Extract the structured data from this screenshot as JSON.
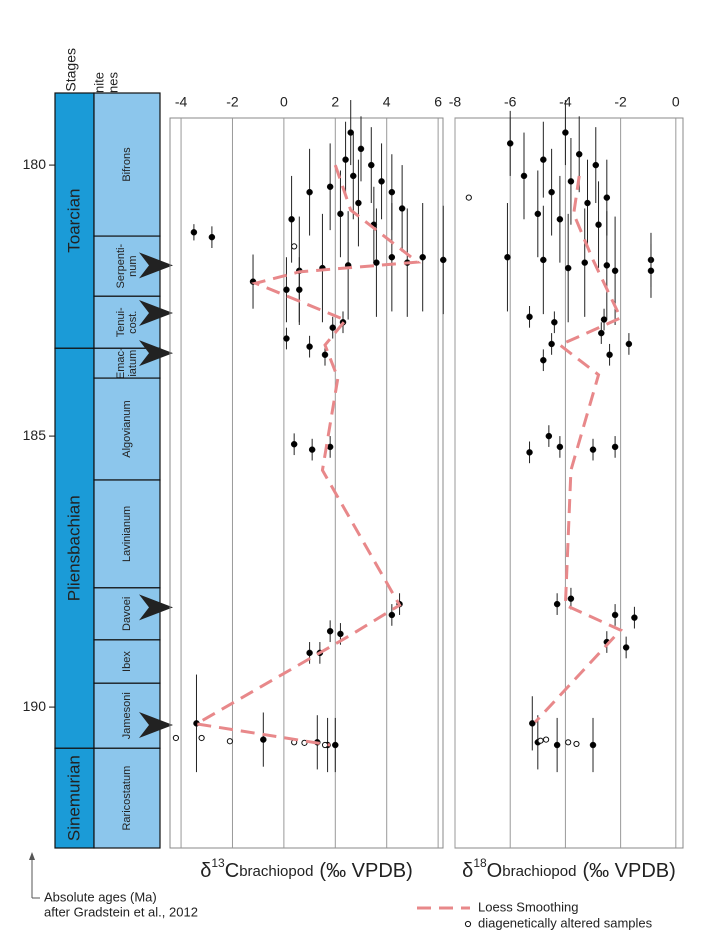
{
  "column": {
    "headers": {
      "stages": "Stages",
      "zones": [
        "Ammonite",
        "Zones"
      ]
    },
    "stages": [
      {
        "name": "Toarcian",
        "top": 178.67,
        "base": 183.38
      },
      {
        "name": "Pliensbachian",
        "top": 183.38,
        "base": 190.76
      },
      {
        "name": "Sinemurian",
        "top": 190.76,
        "base": 192.6
      }
    ],
    "zones": [
      {
        "name": [
          "Bifrons"
        ],
        "top": 178.67,
        "base": 181.31
      },
      {
        "name": [
          "Serpenti-",
          "num"
        ],
        "top": 181.31,
        "base": 182.42
      },
      {
        "name": [
          "Tenui-",
          "cost."
        ],
        "top": 182.42,
        "base": 183.38
      },
      {
        "name": [
          "Emac-",
          "iatum"
        ],
        "top": 183.38,
        "base": 183.93
      },
      {
        "name": [
          "Algovianum"
        ],
        "top": 183.93,
        "base": 185.81
      },
      {
        "name": [
          "Lavinianum"
        ],
        "top": 185.81,
        "base": 187.8
      },
      {
        "name": [
          "Davoei"
        ],
        "top": 187.8,
        "base": 188.76
      },
      {
        "name": [
          "Ibex"
        ],
        "top": 188.76,
        "base": 189.56
      },
      {
        "name": [
          "Jamesoni"
        ],
        "top": 189.56,
        "base": 190.76
      },
      {
        "name": [
          "Raricostatum"
        ],
        "top": 190.76,
        "base": 192.6
      }
    ],
    "arrows": [
      181.85,
      182.73,
      183.47,
      188.16,
      190.33
    ]
  },
  "note": [
    "Absolute ages (Ma)",
    "after Gradstein et al., 2012"
  ],
  "chart_data": [
    {
      "type": "scatter",
      "xlabel": {
        "symbol": "δ",
        "isotope": "13",
        "element": "C",
        "subscript": "brachiopod",
        "unit": "(‰ VPDB)"
      },
      "xlim": [
        -4.43,
        6.19
      ],
      "xticks": [
        -4,
        -2,
        0,
        2,
        4,
        6
      ],
      "ylim": [
        178.67,
        192.6
      ],
      "yticks": [
        180,
        185,
        190
      ],
      "y_inverted": true,
      "grid": true,
      "series": [
        {
          "color": "#000000",
          "marker": "filled",
          "x": [
            2.6,
            3.0,
            2.4,
            3.4,
            2.7,
            3.8,
            1.8,
            1.0,
            4.2,
            2.9,
            4.6,
            2.2,
            0.3,
            3.5,
            -3.5,
            -2.8,
            5.4,
            6.2,
            4.8,
            3.6,
            2.5,
            1.5,
            0.6,
            4.2,
            -1.2,
            0.1,
            0.6,
            2.3,
            1.9,
            0.1,
            1.0,
            1.6,
            0.4,
            1.1,
            1.8,
            4.5,
            4.2,
            1.8,
            2.2,
            1.0,
            1.4,
            -3.4,
            -0.8,
            1.3,
            1.7,
            2.0
          ],
          "y": [
            179.4,
            179.7,
            179.9,
            180.0,
            180.2,
            180.3,
            180.4,
            180.5,
            180.5,
            180.7,
            180.8,
            180.9,
            181.0,
            181.1,
            181.24,
            181.33,
            181.7,
            181.75,
            181.8,
            181.8,
            181.85,
            181.9,
            181.95,
            181.7,
            182.15,
            182.3,
            182.3,
            182.9,
            183.0,
            183.2,
            183.35,
            183.5,
            185.15,
            185.25,
            185.2,
            188.1,
            188.3,
            188.6,
            188.65,
            189.0,
            189.0,
            190.3,
            190.6,
            190.65,
            190.7,
            190.7
          ],
          "yerr": [
            0.6,
            0.6,
            0.7,
            0.7,
            0.8,
            0.7,
            0.8,
            0.8,
            0.7,
            0.8,
            0.8,
            0.8,
            0.8,
            0.7,
            0.15,
            0.2,
            1.0,
            1.0,
            1.0,
            1.0,
            1.0,
            1.0,
            1.0,
            1.0,
            0.5,
            0.6,
            0.6,
            0.2,
            0.2,
            0.2,
            0.2,
            0.2,
            0.2,
            0.2,
            0.2,
            0.2,
            0.2,
            0.2,
            0.2,
            0.2,
            0.2,
            0.9,
            0.5,
            0.5,
            0.5,
            0.5
          ]
        },
        {
          "name": "diagenetically altered samples",
          "color": "#ffffff",
          "marker": "open",
          "x": [
            0.4,
            -4.2,
            -3.2,
            -2.1,
            0.4,
            0.8,
            1.6
          ],
          "y": [
            181.5,
            190.57,
            190.57,
            190.63,
            190.65,
            190.66,
            190.7
          ]
        },
        {
          "name": "Loess Smoothing",
          "color": "#e8888a",
          "marker": "line",
          "x": [
            2.0,
            2.6,
            5.2,
            0.6,
            -1.1,
            2.4,
            1.6,
            2.1,
            1.5,
            4.5,
            2.6,
            -3.4,
            1.8
          ],
          "y": [
            180.0,
            180.83,
            181.79,
            181.97,
            182.18,
            182.86,
            183.32,
            183.93,
            185.63,
            188.12,
            188.67,
            190.31,
            190.7
          ]
        }
      ]
    },
    {
      "type": "scatter",
      "xlabel": {
        "symbol": "δ",
        "isotope": "18",
        "element": "O",
        "subscript": "brachiopod",
        "unit": "(‰ VPDB)"
      },
      "xlim": [
        -8,
        0.26
      ],
      "xticks": [
        -8,
        -6,
        -4,
        -2,
        0
      ],
      "ylim": [
        178.67,
        192.6
      ],
      "y_inverted": true,
      "grid": true,
      "series": [
        {
          "color": "#000000",
          "marker": "filled",
          "x": [
            -4.0,
            -6.0,
            -3.5,
            -4.8,
            -2.9,
            -5.5,
            -3.8,
            -4.5,
            -2.5,
            -3.2,
            -5.0,
            -4.2,
            -2.8,
            -6.1,
            -4.8,
            -3.3,
            -2.5,
            -3.9,
            -2.2,
            -0.9,
            -0.9,
            -5.3,
            -4.4,
            -2.6,
            -2.7,
            -4.5,
            -1.7,
            -4.8,
            -2.4,
            -4.2,
            -5.3,
            -3.0,
            -2.2,
            -4.6,
            -4.3,
            -3.8,
            -2.2,
            -1.5,
            -2.5,
            -1.8,
            -5.2,
            -5.0,
            -4.3,
            -3.0
          ],
          "y": [
            179.4,
            179.6,
            179.8,
            179.9,
            180.0,
            180.2,
            180.3,
            180.5,
            180.6,
            180.7,
            180.9,
            181.0,
            181.1,
            181.7,
            181.75,
            181.8,
            181.85,
            181.9,
            181.95,
            181.75,
            181.95,
            182.8,
            182.9,
            182.85,
            183.1,
            183.3,
            183.3,
            183.6,
            183.5,
            185.2,
            185.3,
            185.25,
            185.2,
            185.0,
            188.1,
            188.0,
            188.3,
            188.35,
            188.8,
            188.9,
            190.3,
            190.65,
            190.7,
            190.7
          ],
          "yerr": [
            0.6,
            0.6,
            0.7,
            0.7,
            0.7,
            0.8,
            0.8,
            0.8,
            0.7,
            0.8,
            0.8,
            0.8,
            0.8,
            1.0,
            1.0,
            1.0,
            1.0,
            1.0,
            1.0,
            0.5,
            0.5,
            0.2,
            0.2,
            0.2,
            0.2,
            0.2,
            0.2,
            0.2,
            0.2,
            0.2,
            0.2,
            0.2,
            0.2,
            0.2,
            0.2,
            0.2,
            0.2,
            0.2,
            0.2,
            0.2,
            0.5,
            0.5,
            0.5,
            0.5
          ]
        },
        {
          "color": "#ffffff",
          "marker": "open",
          "x": [
            -7.5,
            -4.7,
            -4.9,
            -3.9,
            -3.6
          ],
          "y": [
            180.6,
            190.6,
            190.62,
            190.65,
            190.68
          ]
        },
        {
          "color": "#e8888a",
          "marker": "line",
          "x": [
            -3.5,
            -3.7,
            -3.0,
            -2.0,
            -4.2,
            -2.8,
            -3.8,
            -4.0,
            -2.0,
            -5.1
          ],
          "y": [
            180.2,
            180.9,
            181.75,
            182.82,
            183.32,
            183.87,
            185.63,
            188.12,
            188.58,
            190.28
          ]
        }
      ]
    }
  ]
}
